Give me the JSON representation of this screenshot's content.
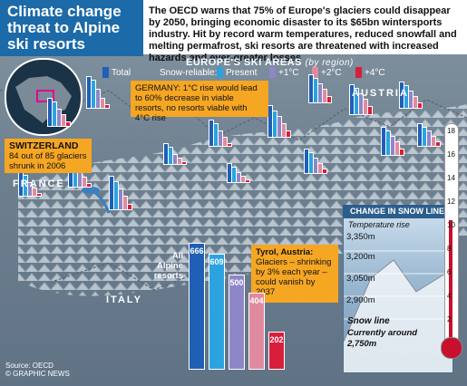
{
  "title": "Climate change threat to Alpine ski resorts",
  "blurb": "The OECD warns that 75% of Europe's glaciers could disappear by 2050, bringing economic disaster to its $65bn wintersports industry. Hit by record warm temperatures, reduced snowfall and melting permafrost, ski resorts are threatened with increased hazards and ever-greater losses",
  "legend": {
    "heading": "EUROPE'S SKI AREAS",
    "heading_note": "(by region)",
    "total": "Total",
    "snow_reliable": "Snow-reliable:",
    "present": "Present",
    "plus1": "+1°C",
    "plus2": "+2°C",
    "plus4": "+4°C"
  },
  "colors": {
    "total": "#1f5fb5",
    "present": "#2aa3e0",
    "plus1": "#8f86c8",
    "plus2": "#e08aa0",
    "plus4": "#d81e3c",
    "callout": "#f5a623"
  },
  "callouts": {
    "germany": "GERMANY: 1°C rise would lead to 60% decrease in viable resorts, no resorts viable with 4°C rise",
    "switzerland_title": "SWITZERLAND",
    "switzerland_text": "84 out of 85 glaciers shrunk in 2006",
    "tyrol_title": "Tyrol, Austria:",
    "tyrol_text": "Glaciers – shrinking by 3% each year – could vanish by 2037"
  },
  "countries": {
    "austria": "AUSTRIA",
    "france": "FRANCE",
    "italy": "ITALY"
  },
  "alpine": {
    "label": "All Alpine resorts",
    "values": [
      666,
      609,
      500,
      404,
      202
    ],
    "labels": [
      "666",
      "609",
      "500",
      "404",
      "202"
    ]
  },
  "snowline": {
    "heading": "CHANGE IN SNOW LINE",
    "sub": "Temperature rise",
    "altitudes": [
      "3,350m",
      "3,200m",
      "3,050m",
      "2,900m"
    ],
    "snow_line": "Snow line",
    "currently": "Currently around",
    "current_alt": "2,750m",
    "ticks": [
      "18",
      "16",
      "14",
      "12",
      "10",
      "8",
      "6",
      "4",
      "2"
    ]
  },
  "source": [
    "Source: OECD",
    "© GRAPHIC NEWS"
  ]
}
